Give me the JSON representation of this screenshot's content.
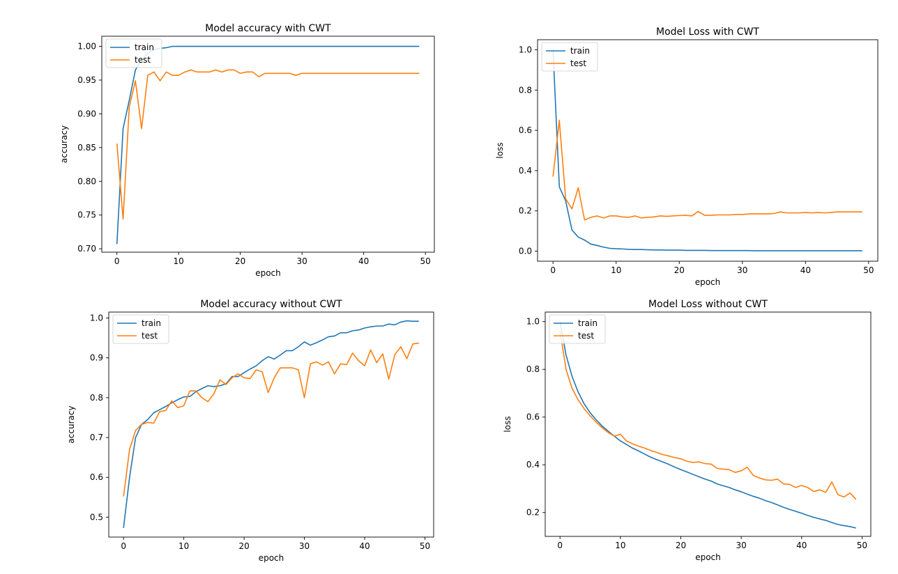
{
  "colors": {
    "train": "#1f77b4",
    "test": "#ff7f0e",
    "axis": "#000000",
    "background": "#ffffff"
  },
  "chart_data": [
    {
      "type": "line",
      "title": "Model accuracy with CWT",
      "xlabel": "epoch",
      "ylabel": "accuracy",
      "xlim": [
        -2.45,
        51.45
      ],
      "ylim": [
        0.695,
        1.015
      ],
      "xticks": [
        0,
        10,
        20,
        30,
        40,
        50
      ],
      "yticks": [
        0.7,
        0.75,
        0.8,
        0.85,
        0.9,
        0.95,
        1.0
      ],
      "ytick_decimals": 2,
      "legend_loc": "upper left",
      "series": [
        {
          "name": "train",
          "values": [
            0.707,
            0.878,
            0.92,
            0.965,
            0.98,
            0.99,
            0.995,
            0.997,
            0.998,
            1,
            1,
            1,
            1,
            1,
            1,
            1,
            1,
            1,
            1,
            1,
            1,
            1,
            1,
            1,
            1,
            1,
            1,
            1,
            1,
            1,
            1,
            1,
            1,
            1,
            1,
            1,
            1,
            1,
            1,
            1,
            1,
            1,
            1,
            1,
            1,
            1,
            1,
            1,
            1,
            1
          ]
        },
        {
          "name": "test",
          "values": [
            0.856,
            0.744,
            0.91,
            0.949,
            0.878,
            0.957,
            0.962,
            0.949,
            0.962,
            0.957,
            0.957,
            0.962,
            0.965,
            0.962,
            0.962,
            0.962,
            0.965,
            0.962,
            0.965,
            0.965,
            0.96,
            0.962,
            0.962,
            0.955,
            0.96,
            0.96,
            0.96,
            0.96,
            0.96,
            0.957,
            0.96,
            0.96,
            0.96,
            0.96,
            0.96,
            0.96,
            0.96,
            0.96,
            0.96,
            0.96,
            0.96,
            0.96,
            0.96,
            0.96,
            0.96,
            0.96,
            0.96,
            0.96,
            0.96,
            0.96
          ]
        }
      ]
    },
    {
      "type": "line",
      "title": "Model Loss with CWT",
      "xlabel": "epoch",
      "ylabel": "loss",
      "xlim": [
        -2.45,
        51.45
      ],
      "ylim": [
        -0.05,
        1.05
      ],
      "xticks": [
        0,
        10,
        20,
        30,
        40,
        50
      ],
      "yticks": [
        0.0,
        0.2,
        0.4,
        0.6,
        0.8,
        1.0
      ],
      "ytick_decimals": 1,
      "legend_loc": "upper left",
      "series": [
        {
          "name": "train",
          "values": [
            1.0,
            0.32,
            0.25,
            0.105,
            0.07,
            0.055,
            0.035,
            0.028,
            0.02,
            0.014,
            0.012,
            0.011,
            0.009,
            0.008,
            0.008,
            0.007,
            0.006,
            0.006,
            0.005,
            0.005,
            0.005,
            0.004,
            0.004,
            0.004,
            0.004,
            0.003,
            0.003,
            0.003,
            0.003,
            0.003,
            0.003,
            0.003,
            0.002,
            0.002,
            0.002,
            0.002,
            0.002,
            0.002,
            0.002,
            0.002,
            0.002,
            0.002,
            0.002,
            0.002,
            0.002,
            0.002,
            0.002,
            0.002,
            0.002,
            0.002
          ]
        },
        {
          "name": "test",
          "values": [
            0.37,
            0.65,
            0.26,
            0.21,
            0.315,
            0.155,
            0.168,
            0.175,
            0.165,
            0.175,
            0.175,
            0.17,
            0.168,
            0.175,
            0.165,
            0.168,
            0.17,
            0.175,
            0.173,
            0.175,
            0.177,
            0.178,
            0.175,
            0.197,
            0.178,
            0.178,
            0.18,
            0.18,
            0.18,
            0.182,
            0.182,
            0.185,
            0.185,
            0.185,
            0.185,
            0.187,
            0.195,
            0.19,
            0.19,
            0.19,
            0.192,
            0.19,
            0.192,
            0.19,
            0.192,
            0.195,
            0.195,
            0.195,
            0.195,
            0.195
          ]
        }
      ]
    },
    {
      "type": "line",
      "title": "Model accuracy without CWT",
      "xlabel": "epoch",
      "ylabel": "accuracy",
      "xlim": [
        -2.45,
        51.45
      ],
      "ylim": [
        0.45,
        1.015
      ],
      "xticks": [
        0,
        10,
        20,
        30,
        40,
        50
      ],
      "yticks": [
        0.5,
        0.6,
        0.7,
        0.8,
        0.9,
        1.0
      ],
      "ytick_decimals": 1,
      "legend_loc": "upper left",
      "series": [
        {
          "name": "train",
          "values": [
            0.473,
            0.6,
            0.7,
            0.733,
            0.745,
            0.762,
            0.77,
            0.778,
            0.787,
            0.795,
            0.802,
            0.803,
            0.815,
            0.823,
            0.83,
            0.828,
            0.83,
            0.835,
            0.853,
            0.853,
            0.863,
            0.872,
            0.88,
            0.893,
            0.903,
            0.897,
            0.907,
            0.918,
            0.918,
            0.928,
            0.94,
            0.932,
            0.938,
            0.945,
            0.953,
            0.955,
            0.963,
            0.963,
            0.968,
            0.97,
            0.975,
            0.978,
            0.98,
            0.98,
            0.985,
            0.983,
            0.99,
            0.993,
            0.992,
            0.992
          ]
        },
        {
          "name": "test",
          "values": [
            0.552,
            0.67,
            0.718,
            0.733,
            0.738,
            0.736,
            0.765,
            0.768,
            0.792,
            0.775,
            0.78,
            0.817,
            0.817,
            0.8,
            0.79,
            0.81,
            0.845,
            0.833,
            0.85,
            0.86,
            0.85,
            0.848,
            0.87,
            0.865,
            0.813,
            0.85,
            0.875,
            0.875,
            0.875,
            0.87,
            0.8,
            0.885,
            0.89,
            0.882,
            0.89,
            0.86,
            0.885,
            0.883,
            0.912,
            0.893,
            0.88,
            0.92,
            0.888,
            0.91,
            0.847,
            0.908,
            0.928,
            0.898,
            0.935,
            0.937
          ]
        }
      ]
    },
    {
      "type": "line",
      "title": "Model Loss without CWT",
      "xlabel": "epoch",
      "ylabel": "loss",
      "xlim": [
        -2.45,
        51.45
      ],
      "ylim": [
        0.1,
        1.04
      ],
      "xticks": [
        0,
        10,
        20,
        30,
        40,
        50
      ],
      "yticks": [
        0.2,
        0.4,
        0.6,
        0.8,
        1.0
      ],
      "ytick_decimals": 1,
      "legend_loc": "upper left",
      "series": [
        {
          "name": "train",
          "values": [
            1.0,
            0.86,
            0.77,
            0.705,
            0.655,
            0.618,
            0.588,
            0.562,
            0.54,
            0.52,
            0.5,
            0.485,
            0.47,
            0.458,
            0.445,
            0.432,
            0.422,
            0.412,
            0.402,
            0.39,
            0.38,
            0.37,
            0.36,
            0.35,
            0.34,
            0.332,
            0.32,
            0.312,
            0.305,
            0.295,
            0.287,
            0.277,
            0.268,
            0.26,
            0.25,
            0.242,
            0.232,
            0.222,
            0.213,
            0.205,
            0.197,
            0.188,
            0.18,
            0.173,
            0.167,
            0.158,
            0.15,
            0.145,
            0.141,
            0.135
          ]
        },
        {
          "name": "test",
          "values": [
            0.96,
            0.8,
            0.72,
            0.672,
            0.635,
            0.605,
            0.578,
            0.555,
            0.535,
            0.52,
            0.528,
            0.5,
            0.488,
            0.478,
            0.47,
            0.46,
            0.452,
            0.443,
            0.437,
            0.43,
            0.425,
            0.415,
            0.41,
            0.412,
            0.405,
            0.403,
            0.385,
            0.382,
            0.38,
            0.368,
            0.375,
            0.39,
            0.355,
            0.345,
            0.337,
            0.335,
            0.34,
            0.32,
            0.318,
            0.305,
            0.313,
            0.305,
            0.288,
            0.295,
            0.285,
            0.328,
            0.275,
            0.265,
            0.282,
            0.255
          ]
        }
      ]
    }
  ]
}
